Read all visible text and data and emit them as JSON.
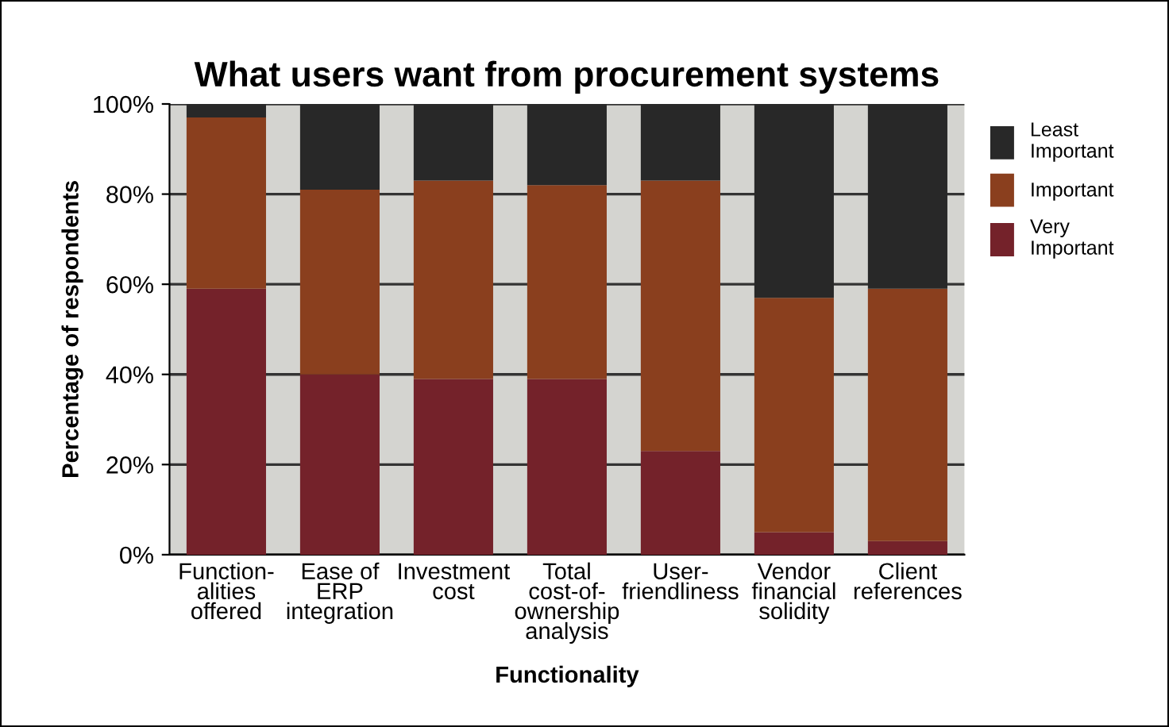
{
  "chart_data": {
    "type": "bar",
    "title": "What users want from procurement systems",
    "xlabel": "Functionality",
    "ylabel": "Percentage of respondents",
    "categories": [
      "Function-\nalities\noffered",
      "Ease of\nERP\nintegration",
      "Investment\ncost",
      "Total\ncost-of-\nownership\nanalysis",
      "User-\nfriendliness",
      "Vendor\nfinancial\nsolidity",
      "Client\nreferences"
    ],
    "stacked": true,
    "series": [
      {
        "name": "Very\nImportant",
        "color": "#74222a",
        "values": [
          59,
          40,
          39,
          39,
          23,
          5,
          3
        ]
      },
      {
        "name": "Important",
        "color": "#8a3f1e",
        "values": [
          38,
          41,
          44,
          43,
          60,
          52,
          56
        ]
      },
      {
        "name": "Least\nImportant",
        "color": "#282828",
        "values": [
          3,
          19,
          17,
          18,
          17,
          43,
          41
        ]
      }
    ],
    "ylim": [
      0,
      100
    ],
    "yticks": [
      {
        "value": 0,
        "label": "0%"
      },
      {
        "value": 20,
        "label": "20%"
      },
      {
        "value": 40,
        "label": "40%"
      },
      {
        "value": 60,
        "label": "60%"
      },
      {
        "value": 80,
        "label": "80%"
      },
      {
        "value": 100,
        "label": "100%"
      }
    ],
    "grid": "y",
    "legend": "right"
  }
}
